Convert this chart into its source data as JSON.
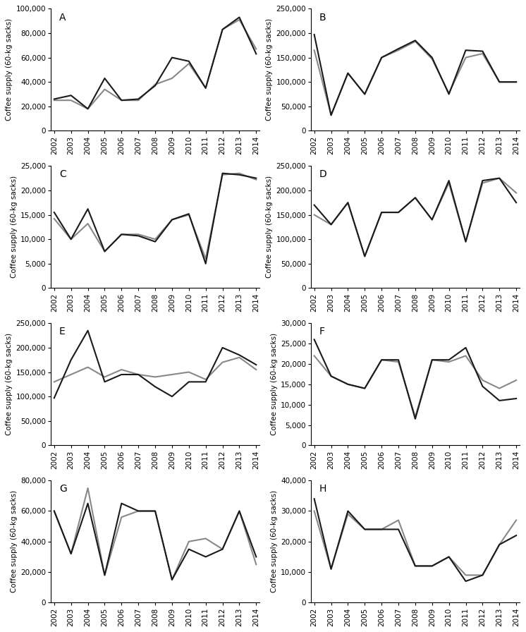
{
  "years": [
    2002,
    2003,
    2004,
    2005,
    2006,
    2007,
    2008,
    2009,
    2010,
    2011,
    2012,
    2013,
    2014
  ],
  "panels": [
    {
      "label": "A",
      "ylim": [
        0,
        100000
      ],
      "yticks": [
        0,
        20000,
        40000,
        60000,
        80000,
        100000
      ],
      "black": [
        26000,
        29000,
        18000,
        43000,
        25000,
        26000,
        37000,
        60000,
        57000,
        35000,
        83000,
        93000,
        63000
      ],
      "gray": [
        25000,
        25000,
        18000,
        34000,
        25000,
        25000,
        38000,
        43000,
        55000,
        35000,
        83000,
        91000,
        67000
      ]
    },
    {
      "label": "B",
      "ylim": [
        0,
        250000
      ],
      "yticks": [
        0,
        50000,
        100000,
        150000,
        200000,
        250000
      ],
      "black": [
        197000,
        32000,
        118000,
        75000,
        150000,
        168000,
        185000,
        150000,
        75000,
        165000,
        163000,
        100000,
        100000
      ],
      "gray": [
        165000,
        32000,
        118000,
        75000,
        150000,
        165000,
        183000,
        147000,
        77000,
        150000,
        158000,
        100000,
        100000
      ]
    },
    {
      "label": "C",
      "ylim": [
        0,
        25000
      ],
      "yticks": [
        0,
        5000,
        10000,
        15000,
        20000,
        25000
      ],
      "black": [
        15500,
        10000,
        16200,
        7500,
        11000,
        10700,
        9500,
        14000,
        15200,
        5000,
        23500,
        23200,
        22500
      ],
      "gray": [
        14200,
        10000,
        13200,
        7500,
        11000,
        11000,
        10000,
        14000,
        15000,
        6000,
        23200,
        23500,
        22200
      ]
    },
    {
      "label": "D",
      "ylim": [
        0,
        250000
      ],
      "yticks": [
        0,
        50000,
        100000,
        150000,
        200000,
        250000
      ],
      "black": [
        170000,
        130000,
        175000,
        65000,
        155000,
        155000,
        185000,
        140000,
        220000,
        95000,
        220000,
        225000,
        175000
      ],
      "gray": [
        150000,
        130000,
        175000,
        65000,
        155000,
        155000,
        185000,
        140000,
        215000,
        95000,
        215000,
        225000,
        195000
      ]
    },
    {
      "label": "E",
      "ylim": [
        0,
        250000
      ],
      "yticks": [
        0,
        50000,
        100000,
        150000,
        200000,
        250000
      ],
      "black": [
        97000,
        175000,
        235000,
        130000,
        145000,
        145000,
        120000,
        100000,
        130000,
        130000,
        200000,
        185000,
        165000
      ],
      "gray": [
        130000,
        145000,
        160000,
        140000,
        155000,
        145000,
        140000,
        145000,
        150000,
        135000,
        170000,
        180000,
        155000
      ]
    },
    {
      "label": "F",
      "ylim": [
        0,
        30000
      ],
      "yticks": [
        0,
        5000,
        10000,
        15000,
        20000,
        25000,
        30000
      ],
      "black": [
        26000,
        17000,
        15000,
        14000,
        21000,
        21000,
        6500,
        21000,
        21000,
        24000,
        14500,
        11000,
        11500
      ],
      "gray": [
        22000,
        17000,
        15000,
        14000,
        21000,
        20500,
        7000,
        21000,
        20500,
        22000,
        16000,
        14000,
        16000
      ]
    },
    {
      "label": "G",
      "ylim": [
        0,
        80000
      ],
      "yticks": [
        0,
        20000,
        40000,
        60000,
        80000
      ],
      "black": [
        60000,
        32000,
        65000,
        18000,
        65000,
        60000,
        60000,
        15000,
        35000,
        30000,
        35000,
        60000,
        30000
      ],
      "gray": [
        60000,
        32000,
        75000,
        18000,
        56000,
        60000,
        60000,
        15000,
        40000,
        42000,
        35000,
        60000,
        25000
      ]
    },
    {
      "label": "H",
      "ylim": [
        0,
        40000
      ],
      "yticks": [
        0,
        10000,
        20000,
        30000,
        40000
      ],
      "black": [
        34000,
        11000,
        30000,
        24000,
        24000,
        24000,
        12000,
        12000,
        15000,
        7000,
        9000,
        19000,
        22000
      ],
      "gray": [
        30000,
        11000,
        29000,
        24000,
        24000,
        27000,
        12000,
        12000,
        15000,
        9000,
        9000,
        19000,
        27000
      ]
    }
  ],
  "ylabel": "Coffee supply (60-kg sacks)",
  "black_color": "#1a1a1a",
  "gray_color": "#888888",
  "linewidth": 1.5
}
